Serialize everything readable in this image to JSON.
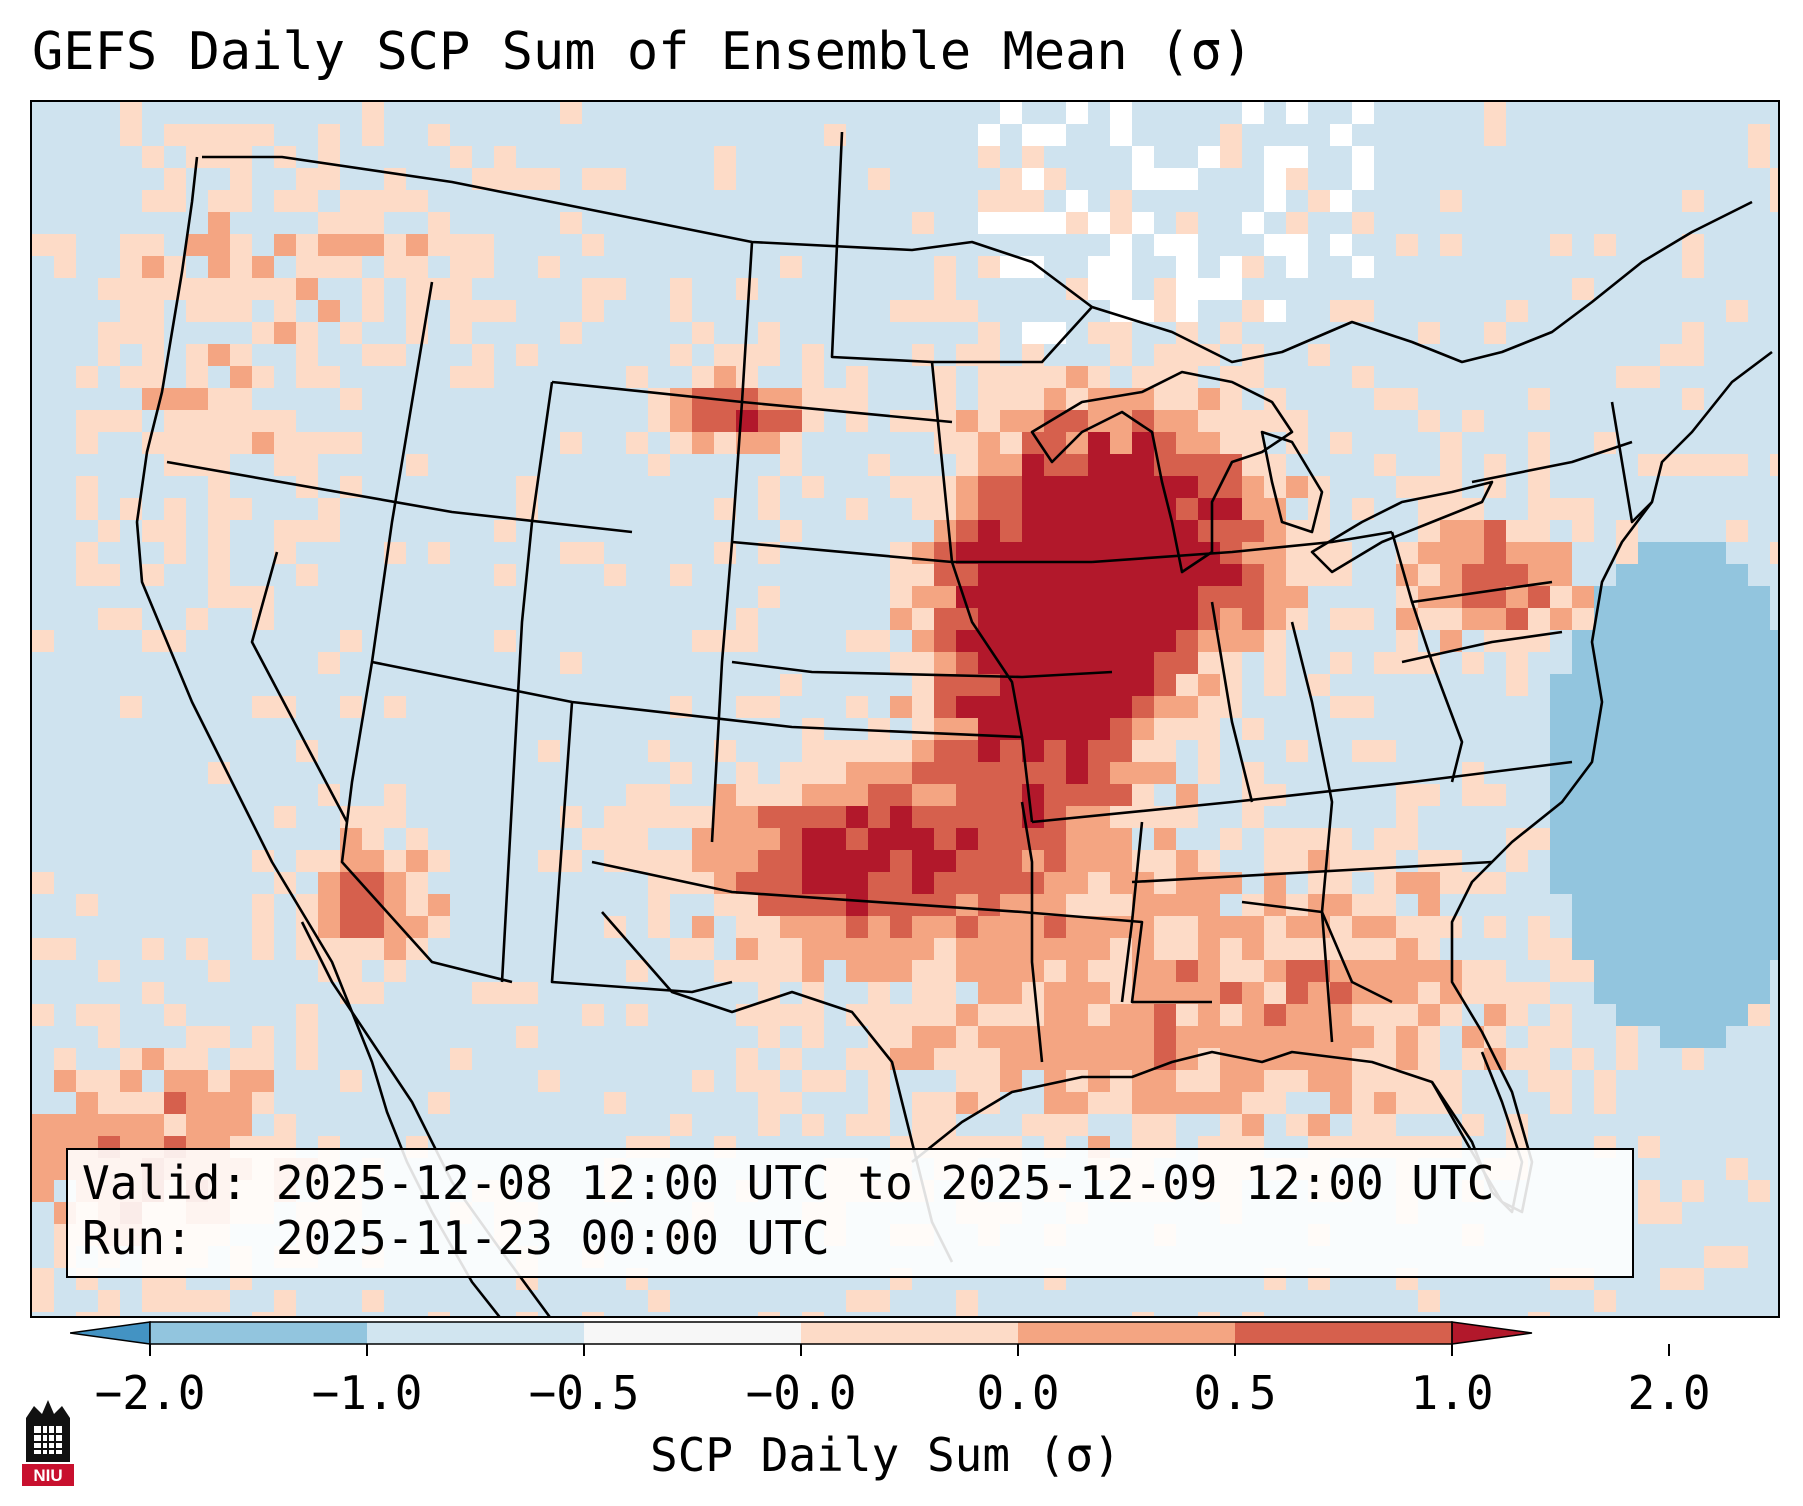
{
  "title": "GEFS Daily SCP Sum of Ensemble Mean (σ)",
  "info": {
    "valid": "Valid: 2025-12-08 12:00 UTC to 2025-12-09 12:00 UTC",
    "run": "Run:   2025-11-23 00:00 UTC"
  },
  "colorbar": {
    "label": "SCP Daily Sum (σ)",
    "ticks": [
      "−2.0",
      "−1.0",
      "−0.5",
      "−0.0",
      "0.0",
      "0.5",
      "1.0",
      "2.0"
    ],
    "colors": [
      "#4393c3",
      "#92c5de",
      "#d1e5f0",
      "#f7f7f7",
      "#fddbc7",
      "#f4a582",
      "#d6604d",
      "#b2182b"
    ],
    "extend": "both"
  },
  "logo": {
    "text": "NIU",
    "color": "#c8102e"
  },
  "map": {
    "background_color": "#d1e5f0",
    "no_data_color": "#ffffff"
  }
}
